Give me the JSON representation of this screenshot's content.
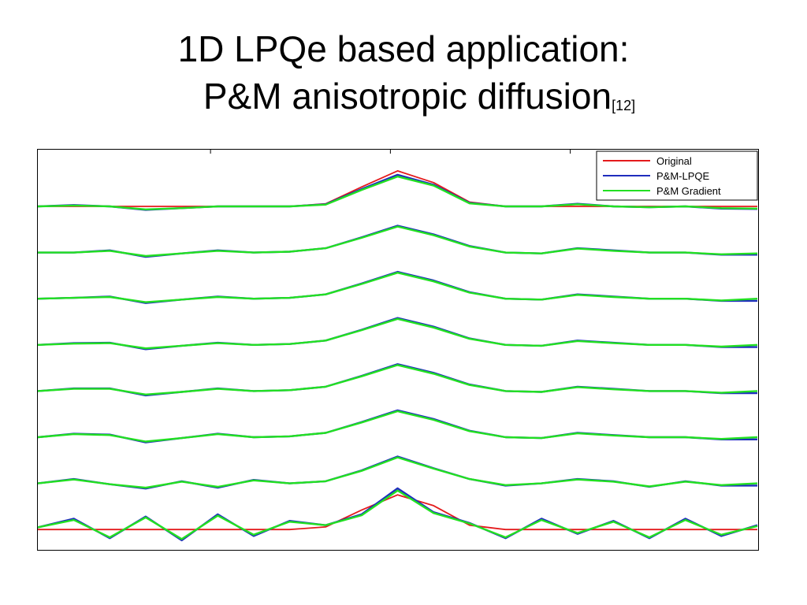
{
  "slide": {
    "title_line1": "1D LPQe based application:",
    "title_line2": "P&M anisotropic diffusion",
    "title_ref": "[12]"
  },
  "chart_data": {
    "type": "line",
    "title": "",
    "xlabel": "",
    "ylabel": "",
    "x_range": [
      0,
      1
    ],
    "grid": false,
    "legend_position": "top-right",
    "panels": 8,
    "legend": [
      "Original",
      "P&M-LPQE",
      "P&M Gradient"
    ],
    "colors": {
      "Original": "#e41a1c",
      "P&M-LPQE": "#1f2dbd",
      "P&M Gradient": "#22e022"
    },
    "x": [
      0.0,
      0.05,
      0.1,
      0.15,
      0.2,
      0.25,
      0.3,
      0.35,
      0.4,
      0.45,
      0.5,
      0.55,
      0.6,
      0.65,
      0.7,
      0.75,
      0.8,
      0.85,
      0.9,
      0.95,
      1.0
    ],
    "series": [
      {
        "name": "Original",
        "panel": 1,
        "values": [
          0.0,
          0.0,
          0.0,
          0.0,
          0.0,
          0.0,
          0.0,
          0.0,
          0.06,
          0.45,
          0.82,
          0.55,
          0.1,
          0.0,
          0.0,
          0.0,
          0.0,
          0.0,
          0.0,
          0.0,
          0.0
        ]
      },
      {
        "name": "P&M-LPQE",
        "panel": 1,
        "values": [
          0.0,
          0.03,
          0.0,
          -0.08,
          -0.04,
          0.0,
          0.0,
          0.0,
          0.05,
          0.4,
          0.73,
          0.5,
          0.08,
          0.0,
          0.0,
          0.06,
          0.0,
          -0.02,
          0.0,
          -0.05,
          -0.06
        ]
      },
      {
        "name": "P&M Gradient",
        "panel": 1,
        "values": [
          0.0,
          0.02,
          0.0,
          -0.07,
          -0.04,
          0.0,
          0.0,
          0.0,
          0.04,
          0.38,
          0.69,
          0.48,
          0.07,
          0.0,
          0.0,
          0.05,
          0.0,
          -0.02,
          0.0,
          -0.04,
          -0.05
        ]
      },
      {
        "name": "P&M-LPQE",
        "panel": 2,
        "values": [
          0.0,
          0.0,
          0.05,
          -0.1,
          -0.02,
          0.05,
          0.0,
          0.02,
          0.1,
          0.35,
          0.62,
          0.42,
          0.15,
          0.0,
          -0.02,
          0.1,
          0.05,
          0.0,
          0.0,
          -0.05,
          -0.05
        ]
      },
      {
        "name": "P&M Gradient",
        "panel": 2,
        "values": [
          0.0,
          0.0,
          0.04,
          -0.08,
          -0.02,
          0.04,
          0.0,
          0.02,
          0.1,
          0.34,
          0.6,
          0.4,
          0.14,
          0.0,
          -0.02,
          0.09,
          0.04,
          0.0,
          0.0,
          -0.04,
          -0.02
        ]
      },
      {
        "name": "P&M-LPQE",
        "panel": 3,
        "values": [
          0.0,
          0.02,
          0.05,
          -0.1,
          -0.02,
          0.05,
          0.0,
          0.02,
          0.1,
          0.35,
          0.62,
          0.42,
          0.15,
          0.0,
          -0.02,
          0.1,
          0.05,
          0.0,
          0.0,
          -0.05,
          -0.05
        ]
      },
      {
        "name": "P&M Gradient",
        "panel": 3,
        "values": [
          0.0,
          0.02,
          0.04,
          -0.08,
          -0.02,
          0.04,
          0.0,
          0.02,
          0.1,
          0.34,
          0.6,
          0.4,
          0.14,
          0.0,
          -0.02,
          0.09,
          0.04,
          0.0,
          0.0,
          -0.04,
          0.0
        ]
      },
      {
        "name": "P&M-LPQE",
        "panel": 4,
        "values": [
          0.0,
          0.04,
          0.05,
          -0.1,
          -0.02,
          0.05,
          0.0,
          0.02,
          0.1,
          0.35,
          0.62,
          0.42,
          0.15,
          0.0,
          -0.02,
          0.1,
          0.05,
          0.0,
          0.0,
          -0.05,
          -0.05
        ]
      },
      {
        "name": "P&M Gradient",
        "panel": 4,
        "values": [
          0.0,
          0.03,
          0.04,
          -0.08,
          -0.02,
          0.04,
          0.0,
          0.02,
          0.1,
          0.34,
          0.6,
          0.4,
          0.14,
          0.0,
          -0.02,
          0.09,
          0.04,
          0.0,
          0.0,
          -0.04,
          0.0
        ]
      },
      {
        "name": "P&M-LPQE",
        "panel": 5,
        "values": [
          0.0,
          0.06,
          0.06,
          -0.1,
          -0.02,
          0.06,
          0.0,
          0.02,
          0.1,
          0.35,
          0.62,
          0.42,
          0.15,
          0.0,
          -0.02,
          0.1,
          0.05,
          0.0,
          0.0,
          -0.05,
          -0.05
        ]
      },
      {
        "name": "P&M Gradient",
        "panel": 5,
        "values": [
          0.0,
          0.05,
          0.05,
          -0.08,
          -0.02,
          0.05,
          0.0,
          0.02,
          0.1,
          0.34,
          0.6,
          0.4,
          0.14,
          0.0,
          -0.02,
          0.09,
          0.04,
          0.0,
          0.0,
          -0.04,
          0.0
        ]
      },
      {
        "name": "P&M-LPQE",
        "panel": 6,
        "values": [
          0.0,
          0.08,
          0.06,
          -0.12,
          -0.02,
          0.08,
          0.0,
          0.02,
          0.1,
          0.35,
          0.62,
          0.42,
          0.15,
          0.0,
          -0.02,
          0.1,
          0.05,
          0.0,
          0.0,
          -0.05,
          -0.05
        ]
      },
      {
        "name": "P&M Gradient",
        "panel": 6,
        "values": [
          0.0,
          0.07,
          0.05,
          -0.1,
          -0.02,
          0.07,
          0.0,
          0.02,
          0.1,
          0.34,
          0.6,
          0.4,
          0.14,
          0.0,
          -0.02,
          0.09,
          0.04,
          0.0,
          0.0,
          -0.04,
          0.0
        ]
      },
      {
        "name": "P&M-LPQE",
        "panel": 7,
        "values": [
          0.0,
          0.1,
          -0.02,
          -0.12,
          0.05,
          -0.1,
          0.08,
          0.0,
          0.05,
          0.3,
          0.62,
          0.35,
          0.1,
          -0.05,
          0.0,
          0.1,
          0.05,
          -0.08,
          0.05,
          -0.05,
          -0.05
        ]
      },
      {
        "name": "P&M Gradient",
        "panel": 7,
        "values": [
          0.0,
          0.09,
          -0.02,
          -0.1,
          0.04,
          -0.08,
          0.07,
          0.0,
          0.05,
          0.29,
          0.6,
          0.34,
          0.1,
          -0.04,
          0.0,
          0.09,
          0.04,
          -0.07,
          0.04,
          -0.04,
          0.0
        ]
      },
      {
        "name": "Original",
        "panel": 8,
        "values": [
          0.0,
          0.0,
          0.0,
          0.0,
          0.0,
          0.0,
          0.0,
          0.0,
          0.06,
          0.45,
          0.8,
          0.55,
          0.1,
          0.0,
          0.0,
          0.0,
          0.0,
          0.0,
          0.0,
          0.0,
          0.0
        ]
      },
      {
        "name": "P&M-LPQE",
        "panel": 8,
        "values": [
          0.05,
          0.25,
          -0.2,
          0.3,
          -0.25,
          0.35,
          -0.15,
          0.2,
          0.1,
          0.35,
          0.95,
          0.4,
          0.15,
          -0.2,
          0.25,
          -0.1,
          0.2,
          -0.2,
          0.25,
          -0.15,
          0.1
        ]
      },
      {
        "name": "P&M Gradient",
        "panel": 8,
        "values": [
          0.05,
          0.22,
          -0.18,
          0.28,
          -0.22,
          0.32,
          -0.12,
          0.18,
          0.1,
          0.33,
          0.9,
          0.38,
          0.14,
          -0.18,
          0.22,
          -0.08,
          0.18,
          -0.18,
          0.22,
          -0.12,
          0.08
        ]
      }
    ]
  }
}
